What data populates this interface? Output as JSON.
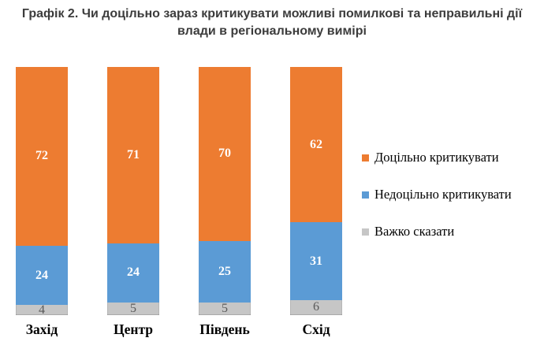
{
  "title": "Графік 2. Чи доцільно зараз критикувати можливі помилкові та неправильні дії влади в регіональному вимірі",
  "colors": {
    "background": "#FFFFFF",
    "title_text": "#3C3C3C",
    "category_label_text": "#000000",
    "legend_text": "#000000"
  },
  "chart_data": {
    "type": "bar",
    "stacked": true,
    "orientation": "vertical",
    "grid": false,
    "axes_visible": false,
    "legend_position": "right",
    "value_unit": "percent",
    "categories": [
      "Захід",
      "Центр",
      "Південь",
      "Схід"
    ],
    "series": [
      {
        "name": "Доцільно критикувати",
        "color": "#ED7C31",
        "label_color": "#FFFFFF",
        "values": [
          72,
          71,
          70,
          62
        ]
      },
      {
        "name": "Недоцільно критикувати",
        "color": "#5B9BD5",
        "label_color": "#FFFFFF",
        "values": [
          24,
          24,
          25,
          31
        ]
      },
      {
        "name": "Важко сказати",
        "color": "#C6C6C6",
        "label_color": "#595959",
        "values": [
          4,
          5,
          5,
          6
        ]
      }
    ]
  }
}
